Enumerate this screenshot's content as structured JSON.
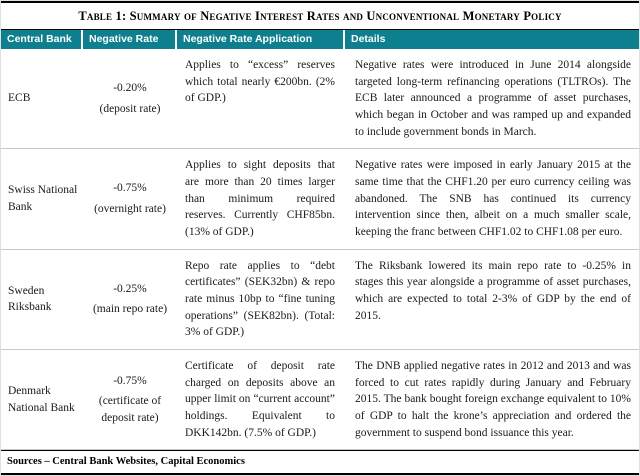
{
  "title": "Table 1: Summary of Negative Interest Rates and Unconventional Monetary Policy",
  "columns": [
    "Central Bank",
    "Negative Rate",
    "Negative Rate Application",
    "Details"
  ],
  "rows": [
    {
      "bank": "ECB",
      "rate": "-0.20%",
      "rate_note": "(deposit rate)",
      "application": "Applies to “excess” reserves which total nearly €200bn. (2% of GDP.)",
      "details": "Negative rates were introduced in June 2014 alongside targeted long-term refinancing operations (TLTROs). The ECB later announced a programme of asset purchases, which began in October and was ramped up and expanded to include government bonds in March."
    },
    {
      "bank": "Swiss National Bank",
      "rate": "-0.75%",
      "rate_note": "(overnight rate)",
      "application": "Applies to sight deposits that are more than 20 times larger than minimum required reserves. Currently CHF85bn. (13% of GDP.)",
      "details": "Negative rates were imposed in early January 2015 at the same time that the CHF1.20 per euro currency ceiling was abandoned. The SNB has continued its currency intervention since then, albeit on a much smaller scale, keeping the franc between CHF1.02 to CHF1.08 per euro."
    },
    {
      "bank": "Sweden Riksbank",
      "rate": "-0.25%",
      "rate_note": "(main repo rate)",
      "application": "Repo rate applies to “debt certificates” (SEK32bn) & repo rate minus 10bp to “fine tuning operations” (SEK82bn). (Total: 3% of GDP.)",
      "details": "The Riksbank lowered its main repo rate to -0.25% in stages this year alongside a programme of asset purchases, which are expected to total 2-3% of GDP by the end of 2015."
    },
    {
      "bank": "Denmark National Bank",
      "rate": "-0.75%",
      "rate_note": "(certificate of deposit rate)",
      "application": "Certificate of deposit rate charged on deposits above an upper limit on “current account” holdings. Equivalent to DKK142bn. (7.5% of GDP.)",
      "details": "The DNB applied negative rates in 2012 and 2013 and was forced to cut rates rapidly during January and February 2015. The bank bought foreign exchange equivalent to 10% of GDP to halt the krone’s appreciation and ordered the government to suspend bond issuance this year."
    }
  ],
  "footer": "Sources – Central Bank Websites, Capital Economics",
  "colors": {
    "header_bg": "#0d7f8e"
  }
}
